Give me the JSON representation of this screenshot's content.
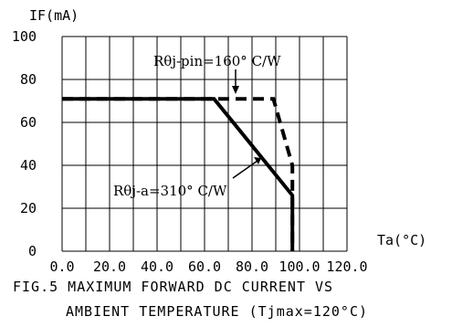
{
  "chart_data": {
    "type": "line",
    "title": "",
    "xlabel": "Ta(°C)",
    "ylabel": "IF(mA)",
    "xlim": [
      0,
      120
    ],
    "ylim": [
      0,
      100
    ],
    "x_ticks": [
      "0.0",
      "20.0",
      "40.0",
      "60.0",
      "80.0",
      "100.0",
      "120.0"
    ],
    "y_ticks": [
      "0",
      "20",
      "40",
      "60",
      "80",
      "100"
    ],
    "grid": true,
    "series": [
      {
        "name": "Rθj-pin=160° C/W",
        "style": "dashed",
        "x": [
          0,
          89,
          97,
          97
        ],
        "y": [
          71,
          71,
          40,
          0
        ]
      },
      {
        "name": "Rθj-a=310° C/W",
        "style": "solid",
        "x": [
          0,
          64,
          97,
          97
        ],
        "y": [
          71,
          71,
          26,
          0
        ]
      }
    ],
    "annotations": [
      {
        "text": "Rθj-pin=160° C/W",
        "target": "Rθj-pin=160° C/W"
      },
      {
        "text": "Rθj-a=310° C/W",
        "target": "Rθj-a=310° C/W"
      }
    ]
  },
  "caption": {
    "line1": "FIG.5 MAXIMUM FORWARD DC CURRENT VS",
    "line2": "AMBIENT TEMPERATURE (Tjmax=120°C)"
  }
}
